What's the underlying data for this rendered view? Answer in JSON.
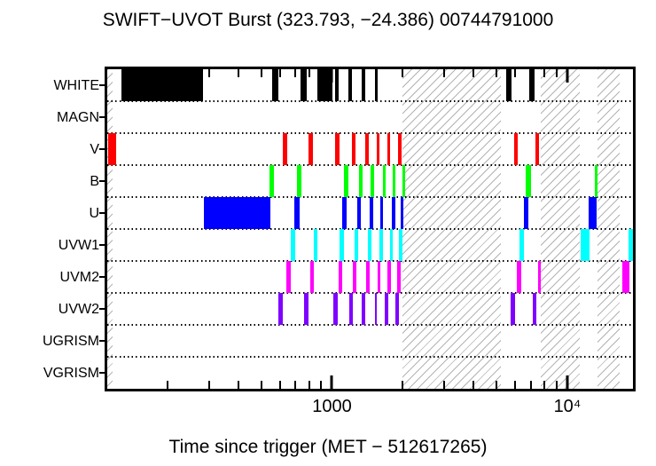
{
  "chart_data": {
    "type": "bar",
    "subtype": "observation-timeline",
    "title": "SWIFT−UVOT Burst (323.793, −24.386) 00744791000",
    "xlabel": "Time since trigger (MET − 512617265)",
    "x_scale": "log",
    "x_range": [
      111,
      19000
    ],
    "grid": "dotted-row-separators",
    "x_major_ticks": [
      {
        "value": 1000,
        "label": "1000"
      },
      {
        "value": 10000,
        "label": "10⁴"
      }
    ],
    "x_minor_ticks": [
      200,
      300,
      400,
      500,
      600,
      700,
      800,
      900,
      2000,
      3000,
      4000,
      5000,
      6000,
      7000,
      8000,
      9000
    ],
    "hatched_regions": [
      [
        111,
        117
      ],
      [
        2000,
        5240
      ],
      [
        7700,
        11250
      ],
      [
        13480,
        16700
      ]
    ],
    "rows": [
      {
        "label": "WHITE",
        "color": "#000000",
        "intervals": [
          [
            128,
            283
          ],
          [
            557,
            592
          ],
          [
            734,
            779
          ],
          [
            864,
            1008
          ],
          [
            1034,
            1071
          ],
          [
            1177,
            1218
          ],
          [
            1339,
            1386
          ],
          [
            1523,
            1563
          ],
          [
            5520,
            5810
          ],
          [
            6900,
            7260
          ]
        ]
      },
      {
        "label": "MAGN",
        "color": "#000000",
        "intervals": []
      },
      {
        "label": "V",
        "color": "#ff0000",
        "intervals": [
          [
            112,
            121
          ],
          [
            618,
            645
          ],
          [
            793,
            828
          ],
          [
            1034,
            1080
          ],
          [
            1218,
            1261
          ],
          [
            1386,
            1434
          ],
          [
            1549,
            1589
          ],
          [
            1717,
            1762
          ],
          [
            1905,
            1970
          ],
          [
            5960,
            6170
          ],
          [
            7330,
            7580
          ]
        ]
      },
      {
        "label": "B",
        "color": "#00ff00",
        "intervals": [
          [
            543,
            567
          ],
          [
            709,
            740
          ],
          [
            1128,
            1177
          ],
          [
            1305,
            1350
          ],
          [
            1459,
            1510
          ],
          [
            1645,
            1688
          ],
          [
            1808,
            1855
          ],
          [
            1987,
            2039
          ],
          [
            6670,
            7020
          ],
          [
            13140,
            13480
          ]
        ]
      },
      {
        "label": "U",
        "color": "#0000ff",
        "intervals": [
          [
            285,
            548
          ],
          [
            691,
            727
          ],
          [
            1108,
            1157
          ],
          [
            1282,
            1327
          ],
          [
            1446,
            1497
          ],
          [
            1603,
            1645
          ],
          [
            1793,
            1855
          ],
          [
            1953,
            2004
          ],
          [
            6550,
            6840
          ],
          [
            12340,
            13370
          ]
        ]
      },
      {
        "label": "UVW1",
        "color": "#00ffff",
        "intervals": [
          [
            668,
            697
          ],
          [
            835,
            864
          ],
          [
            1080,
            1128
          ],
          [
            1250,
            1293
          ],
          [
            1422,
            1471
          ],
          [
            1589,
            1645
          ],
          [
            1762,
            1808
          ],
          [
            1920,
            1987
          ],
          [
            6280,
            6550
          ],
          [
            11420,
            12400
          ],
          [
            18160,
            19000
          ]
        ]
      },
      {
        "label": "UVM2",
        "color": "#ff00ff",
        "intervals": [
          [
            640,
            668
          ],
          [
            806,
            835
          ],
          [
            1071,
            1108
          ],
          [
            1229,
            1271
          ],
          [
            1398,
            1446
          ],
          [
            1563,
            1603
          ],
          [
            1717,
            1777
          ],
          [
            1887,
            1953
          ],
          [
            6120,
            6390
          ],
          [
            7520,
            7730
          ],
          [
            17140,
            18310
          ]
        ]
      },
      {
        "label": "UVW2",
        "color": "#8000ff",
        "intervals": [
          [
            592,
            618
          ],
          [
            759,
            793
          ],
          [
            1017,
            1062
          ],
          [
            1187,
            1229
          ],
          [
            1339,
            1386
          ],
          [
            1523,
            1549
          ],
          [
            1674,
            1732
          ],
          [
            1855,
            1920
          ],
          [
            5760,
            6010
          ],
          [
            7140,
            7390
          ]
        ]
      },
      {
        "label": "UGRISM",
        "color": "#000000",
        "intervals": []
      },
      {
        "label": "VGRISM",
        "color": "#000000",
        "intervals": []
      }
    ]
  }
}
